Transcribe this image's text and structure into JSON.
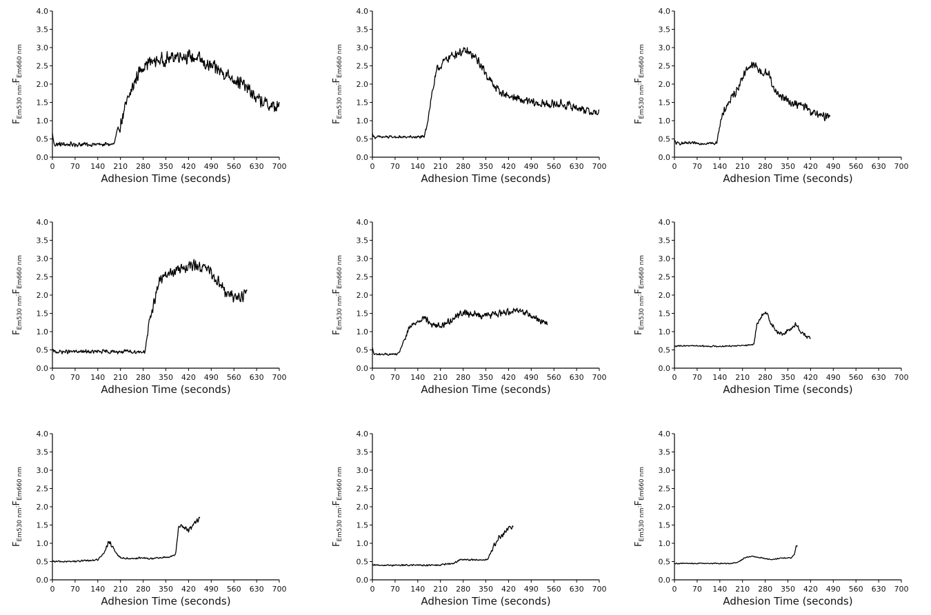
{
  "chart_data": [
    {
      "type": "line",
      "xlabel": "Adhesion Time (seconds)",
      "ylabel_main": [
        "F",
        "F"
      ],
      "ylabel_sub": [
        "Em530 nm",
        ":",
        "Em660 nm"
      ],
      "xlim": [
        0,
        700
      ],
      "ylim": [
        0,
        4
      ],
      "xticks": [
        0,
        70,
        140,
        210,
        280,
        350,
        420,
        490,
        560,
        630,
        700
      ],
      "yticks": [
        0.0,
        0.5,
        1.0,
        1.5,
        2.0,
        2.5,
        3.0,
        3.5,
        4.0
      ],
      "series": [
        {
          "x": [
            0,
            5,
            190,
            200,
            210,
            230,
            260,
            280,
            300,
            330,
            360,
            390,
            420,
            450,
            480,
            510,
            540,
            570,
            600,
            630,
            660,
            690,
            700
          ],
          "y": [
            0.65,
            0.35,
            0.35,
            0.7,
            0.9,
            1.5,
            2.2,
            2.5,
            2.6,
            2.65,
            2.7,
            2.8,
            2.75,
            2.7,
            2.5,
            2.4,
            2.25,
            2.1,
            1.9,
            1.6,
            1.45,
            1.35,
            1.4
          ],
          "noise": 0.22
        }
      ]
    },
    {
      "type": "line",
      "xlabel": "Adhesion Time (seconds)",
      "ylabel_main": [
        "F",
        "F"
      ],
      "ylabel_sub": [
        "Em530 nm",
        ":",
        "Em660 nm"
      ],
      "xlim": [
        0,
        700
      ],
      "ylim": [
        0,
        4
      ],
      "xticks": [
        0,
        70,
        140,
        210,
        280,
        350,
        420,
        490,
        560,
        630,
        700
      ],
      "yticks": [
        0.0,
        0.5,
        1.0,
        1.5,
        2.0,
        2.5,
        3.0,
        3.5,
        4.0
      ],
      "series": [
        {
          "x": [
            0,
            5,
            160,
            170,
            185,
            200,
            230,
            260,
            290,
            320,
            350,
            370,
            400,
            430,
            460,
            490,
            520,
            550,
            580,
            610,
            640,
            670,
            700
          ],
          "y": [
            0.65,
            0.55,
            0.55,
            1.0,
            1.8,
            2.4,
            2.7,
            2.85,
            2.9,
            2.7,
            2.3,
            2.0,
            1.75,
            1.65,
            1.55,
            1.5,
            1.45,
            1.45,
            1.45,
            1.4,
            1.35,
            1.25,
            1.2
          ],
          "noise": 0.14
        }
      ]
    },
    {
      "type": "line",
      "xlabel": "Adhesion Time (seconds)",
      "ylabel_main": [
        "F",
        "F"
      ],
      "ylabel_sub": [
        "Em530 nm",
        ":",
        "Em660 nm"
      ],
      "xlim": [
        0,
        700
      ],
      "ylim": [
        0,
        4
      ],
      "xticks": [
        0,
        70,
        140,
        210,
        280,
        350,
        420,
        490,
        560,
        630,
        700
      ],
      "yticks": [
        0.0,
        0.5,
        1.0,
        1.5,
        2.0,
        2.5,
        3.0,
        3.5,
        4.0
      ],
      "series": [
        {
          "x": [
            0,
            5,
            130,
            140,
            160,
            190,
            210,
            230,
            250,
            270,
            290,
            310,
            340,
            370,
            400,
            430,
            460,
            480
          ],
          "y": [
            0.45,
            0.38,
            0.38,
            0.9,
            1.4,
            1.8,
            2.2,
            2.5,
            2.5,
            2.3,
            2.3,
            1.8,
            1.6,
            1.45,
            1.4,
            1.2,
            1.1,
            1.2
          ],
          "noise": 0.14
        }
      ]
    },
    {
      "type": "line",
      "xlabel": "Adhesion Time (seconds)",
      "ylabel_main": [
        "F",
        "F"
      ],
      "ylabel_sub": [
        "Em530 nm",
        ":",
        "Em660 nm"
      ],
      "xlim": [
        0,
        700
      ],
      "ylim": [
        0,
        4
      ],
      "xticks": [
        0,
        70,
        140,
        210,
        280,
        350,
        420,
        490,
        560,
        630,
        700
      ],
      "yticks": [
        0.0,
        0.5,
        1.0,
        1.5,
        2.0,
        2.5,
        3.0,
        3.5,
        4.0
      ],
      "series": [
        {
          "x": [
            0,
            5,
            285,
            295,
            310,
            330,
            360,
            390,
            420,
            450,
            480,
            510,
            540,
            570,
            590,
            600
          ],
          "y": [
            0.5,
            0.45,
            0.45,
            1.0,
            1.7,
            2.4,
            2.6,
            2.7,
            2.8,
            2.8,
            2.7,
            2.4,
            2.0,
            1.95,
            2.0,
            2.1
          ],
          "noise": 0.18
        }
      ]
    },
    {
      "type": "line",
      "xlabel": "Adhesion Time (seconds)",
      "ylabel_main": [
        "F",
        "F"
      ],
      "ylabel_sub": [
        "Em530 nm",
        ":",
        "Em660 nm"
      ],
      "xlim": [
        0,
        700
      ],
      "ylim": [
        0,
        4
      ],
      "xticks": [
        0,
        70,
        140,
        210,
        280,
        350,
        420,
        490,
        560,
        630,
        700
      ],
      "yticks": [
        0.0,
        0.5,
        1.0,
        1.5,
        2.0,
        2.5,
        3.0,
        3.5,
        4.0
      ],
      "series": [
        {
          "x": [
            0,
            5,
            80,
            95,
            115,
            140,
            160,
            180,
            210,
            240,
            270,
            300,
            330,
            360,
            390,
            420,
            450,
            480,
            510,
            540
          ],
          "y": [
            0.55,
            0.38,
            0.38,
            0.7,
            1.1,
            1.3,
            1.4,
            1.2,
            1.15,
            1.3,
            1.5,
            1.5,
            1.45,
            1.45,
            1.5,
            1.55,
            1.6,
            1.5,
            1.35,
            1.2
          ],
          "noise": 0.11
        }
      ]
    },
    {
      "type": "line",
      "xlabel": "Adhesion Time (seconds)",
      "ylabel_main": [
        "F",
        "F"
      ],
      "ylabel_sub": [
        "Em530 nm",
        ":",
        "Em660 nm"
      ],
      "xlim": [
        0,
        700
      ],
      "ylim": [
        0,
        4
      ],
      "xticks": [
        0,
        70,
        140,
        210,
        280,
        350,
        420,
        490,
        560,
        630,
        700
      ],
      "yticks": [
        0.0,
        0.5,
        1.0,
        1.5,
        2.0,
        2.5,
        3.0,
        3.5,
        4.0
      ],
      "series": [
        {
          "x": [
            0,
            50,
            100,
            150,
            200,
            245,
            255,
            270,
            285,
            300,
            320,
            340,
            360,
            375,
            390,
            410,
            420
          ],
          "y": [
            0.6,
            0.62,
            0.6,
            0.6,
            0.62,
            0.65,
            1.2,
            1.45,
            1.5,
            1.2,
            0.95,
            0.95,
            1.1,
            1.2,
            1.0,
            0.85,
            0.8
          ],
          "noise": 0.07
        }
      ]
    },
    {
      "type": "line",
      "xlabel": "Adhesion Time (seconds)",
      "ylabel_main": [
        "F",
        "F"
      ],
      "ylabel_sub": [
        "Em530 nm",
        ":",
        "Em660 nm"
      ],
      "xlim": [
        0,
        700
      ],
      "ylim": [
        0,
        4
      ],
      "xticks": [
        0,
        70,
        140,
        210,
        280,
        350,
        420,
        490,
        560,
        630,
        700
      ],
      "yticks": [
        0.0,
        0.5,
        1.0,
        1.5,
        2.0,
        2.5,
        3.0,
        3.5,
        4.0
      ],
      "series": [
        {
          "x": [
            0,
            50,
            100,
            140,
            160,
            175,
            190,
            210,
            240,
            270,
            300,
            330,
            360,
            380,
            390,
            400,
            420,
            440,
            455
          ],
          "y": [
            0.5,
            0.5,
            0.52,
            0.55,
            0.75,
            1.05,
            0.8,
            0.6,
            0.58,
            0.6,
            0.58,
            0.6,
            0.62,
            0.7,
            1.5,
            1.45,
            1.35,
            1.55,
            1.7
          ],
          "noise": 0.08
        }
      ]
    },
    {
      "type": "line",
      "xlabel": "Adhesion Time (seconds)",
      "ylabel_main": [
        "F",
        "F"
      ],
      "ylabel_sub": [
        "Em530 nm",
        ":",
        "Em660 nm"
      ],
      "xlim": [
        0,
        700
      ],
      "ylim": [
        0,
        4
      ],
      "xticks": [
        0,
        70,
        140,
        210,
        280,
        350,
        420,
        490,
        560,
        630,
        700
      ],
      "yticks": [
        0.0,
        0.5,
        1.0,
        1.5,
        2.0,
        2.5,
        3.0,
        3.5,
        4.0
      ],
      "series": [
        {
          "x": [
            0,
            100,
            200,
            250,
            270,
            300,
            330,
            355,
            370,
            390,
            410,
            425,
            435
          ],
          "y": [
            0.4,
            0.4,
            0.4,
            0.45,
            0.55,
            0.55,
            0.55,
            0.55,
            0.85,
            1.15,
            1.3,
            1.45,
            1.4
          ],
          "noise": 0.08
        }
      ]
    },
    {
      "type": "line",
      "xlabel": "Adhesion Time (seconds)",
      "ylabel_main": [
        "F",
        "F"
      ],
      "ylabel_sub": [
        "Em530 nm",
        ":",
        "Em660 nm"
      ],
      "xlim": [
        0,
        700
      ],
      "ylim": [
        0,
        4
      ],
      "xticks": [
        0,
        70,
        140,
        210,
        280,
        350,
        420,
        490,
        560,
        630,
        700
      ],
      "yticks": [
        0.0,
        0.5,
        1.0,
        1.5,
        2.0,
        2.5,
        3.0,
        3.5,
        4.0
      ],
      "series": [
        {
          "x": [
            0,
            60,
            120,
            180,
            200,
            215,
            240,
            270,
            300,
            330,
            360,
            370,
            375,
            380
          ],
          "y": [
            0.45,
            0.45,
            0.45,
            0.45,
            0.5,
            0.6,
            0.65,
            0.6,
            0.55,
            0.6,
            0.6,
            0.7,
            0.9,
            0.92
          ],
          "noise": 0.05
        }
      ]
    }
  ]
}
